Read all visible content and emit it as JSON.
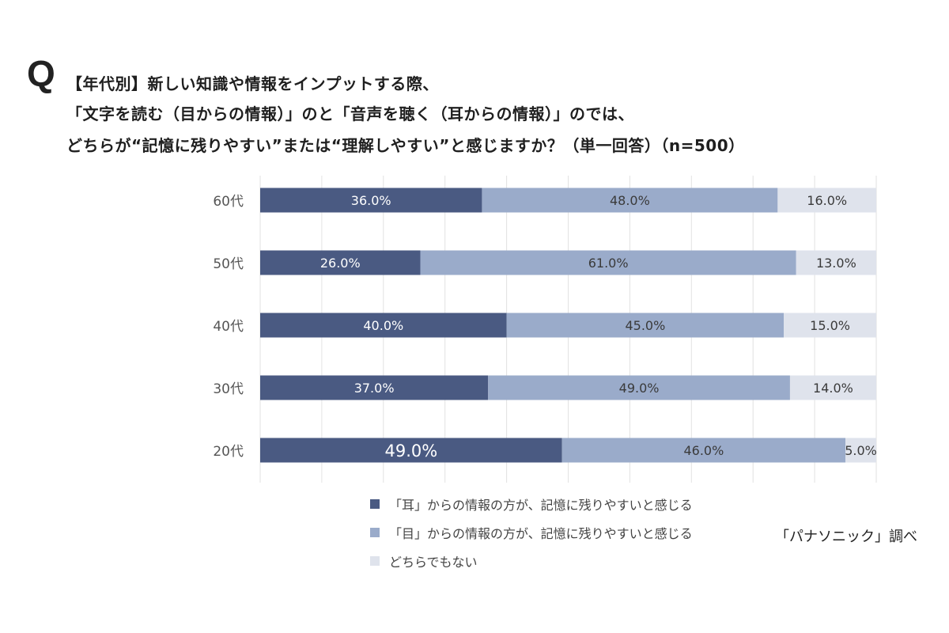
{
  "question": {
    "mark": "Q",
    "lines": [
      "【年代別】新しい知識や情報をインプットする際、",
      "「文字を読む（目からの情報）」のと「音声を聴く（耳からの情報）」のでは、",
      "どちらが“記憶に残りやすい”または“理解しやすい”と感じますか？（単一回答）（n=500）"
    ]
  },
  "source": "「パナソニック」調べ",
  "chart_data": {
    "type": "bar",
    "orientation": "horizontal",
    "stacked": "100%",
    "categories": [
      "60代",
      "50代",
      "40代",
      "30代",
      "20代"
    ],
    "series": [
      {
        "name": "「耳」からの情報の方が、記憶に残りやすいと感じる",
        "color": "#4a5a82",
        "text_color": "#ffffff",
        "values": [
          36.0,
          26.0,
          40.0,
          37.0,
          49.0
        ],
        "labels": [
          "36.0%",
          "26.0%",
          "40.0%",
          "37.0%",
          "49.0%"
        ]
      },
      {
        "name": "「目」からの情報の方が、記憶に残りやすいと感じる",
        "color": "#9aabca",
        "text_color": "#3a3a3a",
        "values": [
          48.0,
          61.0,
          45.0,
          49.0,
          46.0
        ],
        "labels": [
          "48.0%",
          "61.0%",
          "45.0%",
          "49.0%",
          "46.0%"
        ]
      },
      {
        "name": "どちらでもない",
        "color": "#dfe3ec",
        "text_color": "#3a3a3a",
        "values": [
          16.0,
          13.0,
          15.0,
          14.0,
          5.0
        ],
        "labels": [
          "16.0%",
          "13.0%",
          "15.0%",
          "14.0%",
          "5.0%"
        ]
      }
    ],
    "xlim": [
      0,
      100
    ],
    "grid": true,
    "legend_position": "bottom"
  }
}
